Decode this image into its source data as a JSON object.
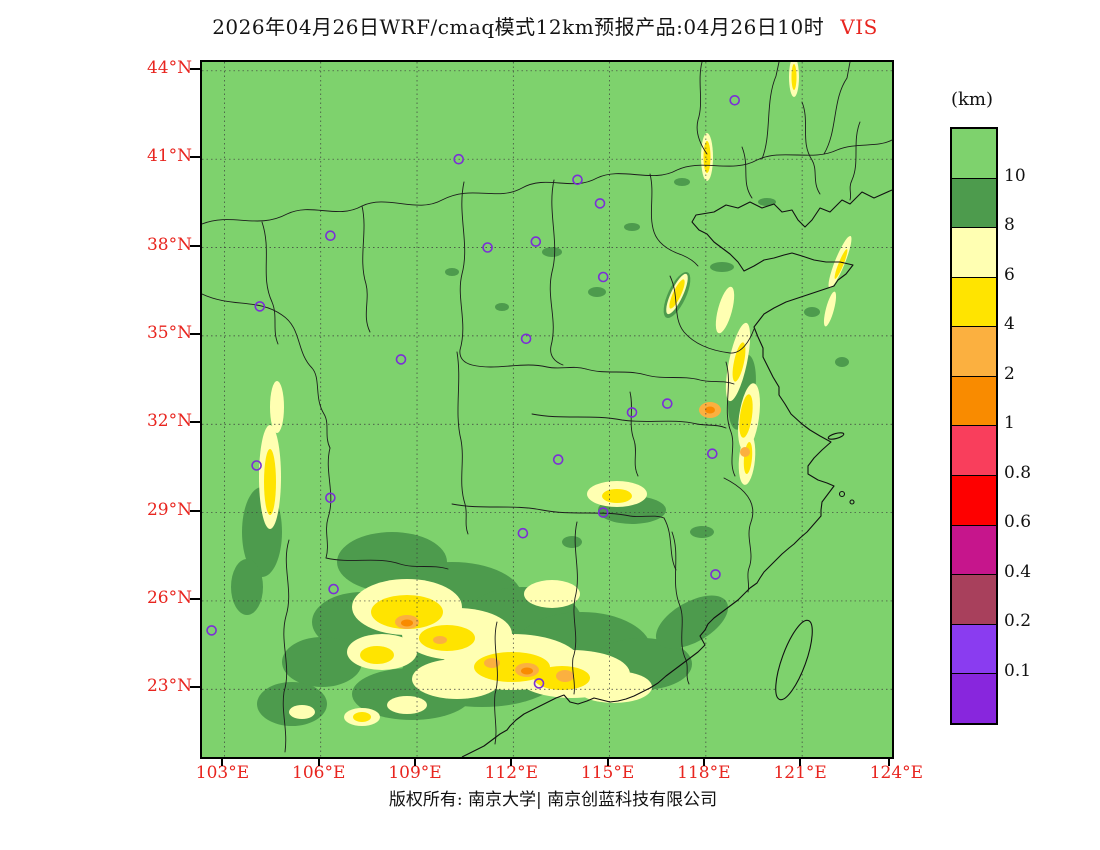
{
  "title": {
    "text": "2026年04月26日WRF/cmaq模式12km预报产品:04月26日10时",
    "suffix": "VIS"
  },
  "footer": {
    "text": "版权所有: 南京大学| 南京创蓝科技有限公司"
  },
  "axes": {
    "lat_ticks": [
      {
        "value": 44,
        "label": "44°N"
      },
      {
        "value": 41,
        "label": "41°N"
      },
      {
        "value": 38,
        "label": "38°N"
      },
      {
        "value": 35,
        "label": "35°N"
      },
      {
        "value": 32,
        "label": "32°N"
      },
      {
        "value": 29,
        "label": "29°N"
      },
      {
        "value": 26,
        "label": "26°N"
      },
      {
        "value": 23,
        "label": "23°N"
      }
    ],
    "lon_ticks": [
      {
        "value": 103,
        "label": "103°E"
      },
      {
        "value": 106,
        "label": "106°E"
      },
      {
        "value": 109,
        "label": "109°E"
      },
      {
        "value": 112,
        "label": "112°E"
      },
      {
        "value": 115,
        "label": "115°E"
      },
      {
        "value": 118,
        "label": "118°E"
      },
      {
        "value": 121,
        "label": "121°E"
      },
      {
        "value": 124,
        "label": "124°E"
      }
    ]
  },
  "geo": {
    "lon_range": [
      102.3,
      123.8
    ],
    "lat_range": [
      20.7,
      44.3
    ]
  },
  "colorbar": {
    "unit": "(km)",
    "tick_labels": [
      "10",
      "8",
      "6",
      "4",
      "2",
      "1",
      "0.8",
      "0.6",
      "0.4",
      "0.2",
      "0.1"
    ],
    "segment_colors_top_to_bottom": [
      "#7ed26d",
      "#4d9b4d",
      "#ffffb2",
      "#ffe400",
      "#fbb040",
      "#f98b00",
      "#f93e5c",
      "#fe0000",
      "#c6158c",
      "#a8405c",
      "#8a3cf0",
      "#8826dd"
    ]
  },
  "map": {
    "background_color": "#7ed26d",
    "marker_color": "#7b2fd6",
    "grid_color": "#3c3c3c",
    "boundary_color": "#1c1c1c",
    "city_markers": [
      [
        118.9,
        43.0
      ],
      [
        110.3,
        41.0
      ],
      [
        114.0,
        40.3
      ],
      [
        114.7,
        39.5
      ],
      [
        106.3,
        38.4
      ],
      [
        111.2,
        38.0
      ],
      [
        112.7,
        38.2
      ],
      [
        114.8,
        37.0
      ],
      [
        104.1,
        36.0
      ],
      [
        108.5,
        34.2
      ],
      [
        112.4,
        34.9
      ],
      [
        115.7,
        32.4
      ],
      [
        116.8,
        32.7
      ],
      [
        118.2,
        31.0
      ],
      [
        104.0,
        30.6
      ],
      [
        106.3,
        29.5
      ],
      [
        113.4,
        30.8
      ],
      [
        114.8,
        29.0
      ],
      [
        112.3,
        28.3
      ],
      [
        118.3,
        26.9
      ],
      [
        106.4,
        26.4
      ],
      [
        102.6,
        25.0
      ],
      [
        112.8,
        23.2
      ]
    ]
  },
  "text_colors": {
    "axis_label_red": "#e8251f",
    "title_red": "#e8251f",
    "ink": "#111111"
  }
}
